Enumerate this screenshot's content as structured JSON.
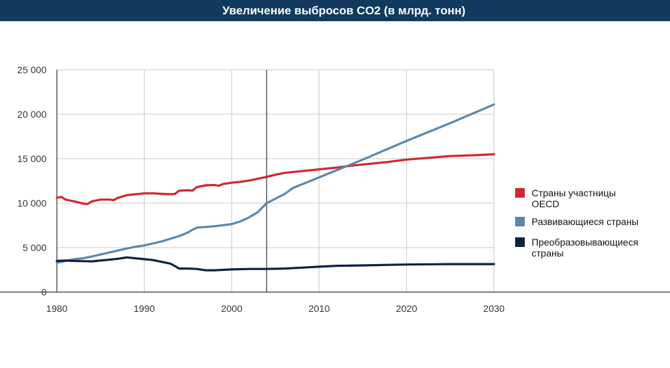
{
  "chart_data": {
    "type": "line",
    "title": "Увеличение выбросов CO2 (в млрд. тонн)",
    "xlabel": "",
    "ylabel": "",
    "xlim": [
      1980,
      2030
    ],
    "ylim": [
      0,
      25000
    ],
    "x_ticks": [
      "1980",
      "1990",
      "2000",
      "2010",
      "2020",
      "2030"
    ],
    "y_ticks": [
      "0",
      "5 000",
      "10 000",
      "15 000",
      "20 000",
      "25 000"
    ],
    "grid": true,
    "reference_line_x": 2004,
    "legend_position": "right",
    "series": [
      {
        "name": "Страны участницы OECD",
        "name_lines": [
          "Страны участницы",
          "OECD"
        ],
        "color": "#d22630",
        "points": [
          [
            1980,
            10600
          ],
          [
            1980.5,
            10700
          ],
          [
            1981,
            10400
          ],
          [
            1982,
            10200
          ],
          [
            1983,
            9950
          ],
          [
            1983.5,
            9900
          ],
          [
            1984,
            10200
          ],
          [
            1985,
            10400
          ],
          [
            1986,
            10400
          ],
          [
            1986.5,
            10350
          ],
          [
            1987,
            10600
          ],
          [
            1988,
            10900
          ],
          [
            1989,
            11000
          ],
          [
            1990,
            11100
          ],
          [
            1991,
            11100
          ],
          [
            1992,
            11050
          ],
          [
            1993,
            11000
          ],
          [
            1993.5,
            11050
          ],
          [
            1994,
            11400
          ],
          [
            1995,
            11450
          ],
          [
            1995.5,
            11400
          ],
          [
            1996,
            11800
          ],
          [
            1997,
            12000
          ],
          [
            1998,
            12050
          ],
          [
            1998.5,
            11950
          ],
          [
            1999,
            12150
          ],
          [
            2000,
            12300
          ],
          [
            2001,
            12400
          ],
          [
            2002,
            12550
          ],
          [
            2003,
            12750
          ],
          [
            2004,
            12950
          ],
          [
            2005,
            13200
          ],
          [
            2006,
            13400
          ],
          [
            2008,
            13600
          ],
          [
            2010,
            13800
          ],
          [
            2012,
            14000
          ],
          [
            2014,
            14250
          ],
          [
            2016,
            14450
          ],
          [
            2018,
            14650
          ],
          [
            2020,
            14900
          ],
          [
            2022,
            15050
          ],
          [
            2025,
            15300
          ],
          [
            2028,
            15400
          ],
          [
            2030,
            15500
          ]
        ]
      },
      {
        "name": "Развивающиеся страны",
        "name_lines": [
          "Развивающиеся страны"
        ],
        "color": "#5b87a8",
        "points": [
          [
            1980,
            3300
          ],
          [
            1981,
            3500
          ],
          [
            1982,
            3700
          ],
          [
            1983,
            3800
          ],
          [
            1984,
            4000
          ],
          [
            1986,
            4450
          ],
          [
            1988,
            4900
          ],
          [
            1989,
            5100
          ],
          [
            1990,
            5250
          ],
          [
            1992,
            5700
          ],
          [
            1994,
            6300
          ],
          [
            1995,
            6700
          ],
          [
            1995.5,
            7000
          ],
          [
            1996,
            7250
          ],
          [
            1998,
            7400
          ],
          [
            2000,
            7650
          ],
          [
            2001,
            7950
          ],
          [
            2002,
            8400
          ],
          [
            2003,
            9000
          ],
          [
            2004,
            10000
          ],
          [
            2005,
            10500
          ],
          [
            2006,
            11000
          ],
          [
            2007,
            11700
          ],
          [
            2008,
            12100
          ],
          [
            2010,
            12900
          ],
          [
            2012,
            13700
          ],
          [
            2015,
            14900
          ],
          [
            2020,
            17000
          ],
          [
            2025,
            19000
          ],
          [
            2030,
            21100
          ]
        ]
      },
      {
        "name": "Преобразовывающиеся страны",
        "name_lines": [
          "Преобразовывающиеся",
          "страны"
        ],
        "color": "#0d2240",
        "points": [
          [
            1980,
            3500
          ],
          [
            1981,
            3550
          ],
          [
            1982,
            3500
          ],
          [
            1984,
            3450
          ],
          [
            1986,
            3650
          ],
          [
            1987,
            3750
          ],
          [
            1988,
            3900
          ],
          [
            1989,
            3800
          ],
          [
            1990,
            3700
          ],
          [
            1991,
            3600
          ],
          [
            1992,
            3400
          ],
          [
            1993,
            3200
          ],
          [
            1994,
            2650
          ],
          [
            1995,
            2650
          ],
          [
            1996,
            2600
          ],
          [
            1997,
            2450
          ],
          [
            1998,
            2450
          ],
          [
            2000,
            2550
          ],
          [
            2002,
            2600
          ],
          [
            2004,
            2600
          ],
          [
            2006,
            2650
          ],
          [
            2008,
            2750
          ],
          [
            2010,
            2850
          ],
          [
            2012,
            2950
          ],
          [
            2015,
            3000
          ],
          [
            2020,
            3100
          ],
          [
            2025,
            3150
          ],
          [
            2030,
            3150
          ]
        ]
      }
    ]
  }
}
